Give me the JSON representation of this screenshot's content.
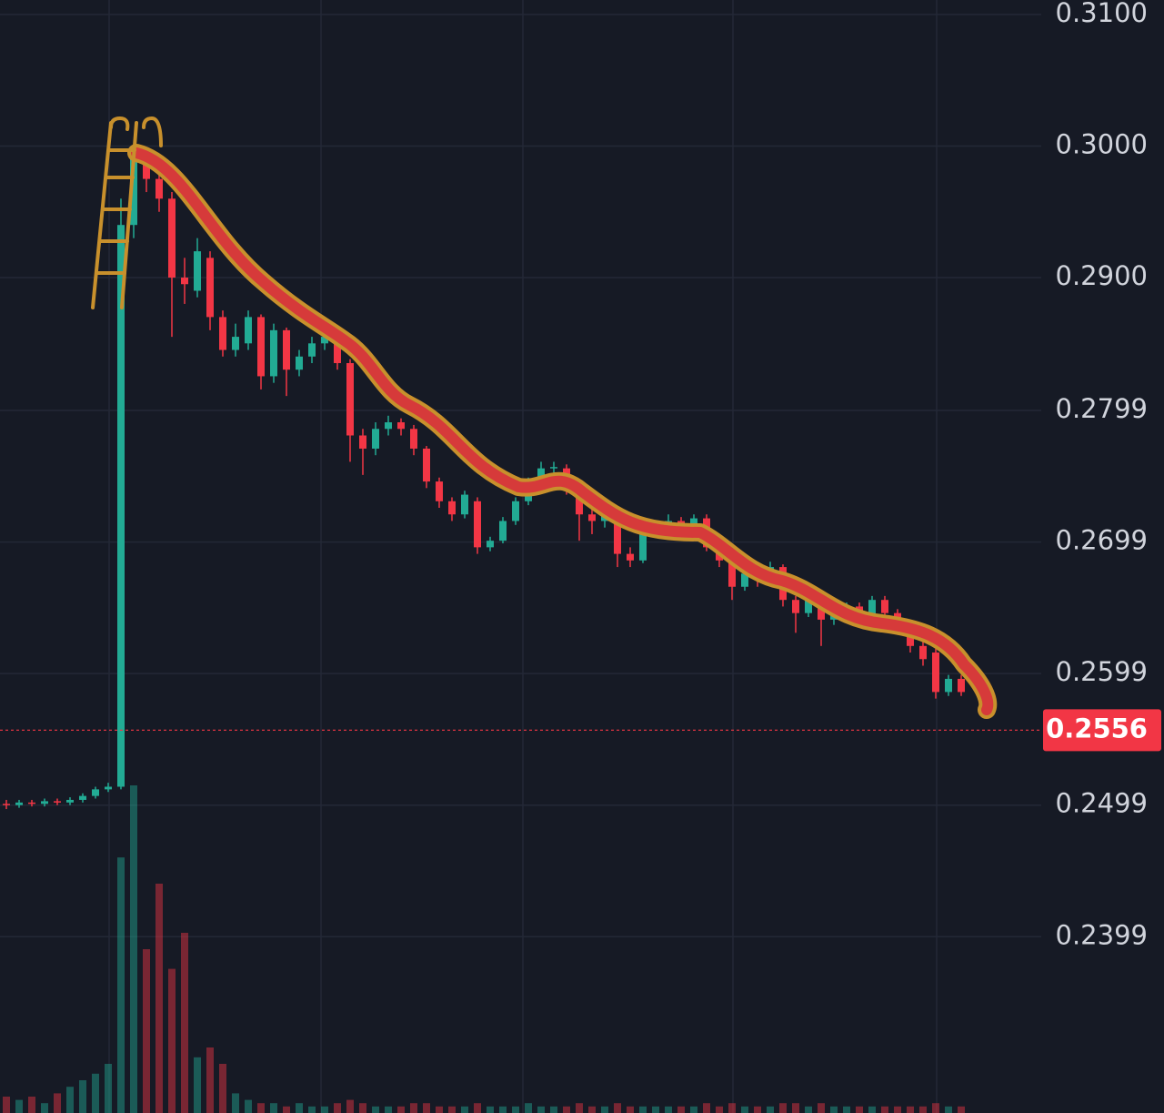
{
  "chart_data": {
    "type": "candlestick",
    "open": [
      0.25,
      0.2499,
      0.2501,
      0.25,
      0.2502,
      0.2501,
      0.2503,
      0.2506,
      0.2511,
      0.2513,
      0.294,
      0.2995,
      0.2975,
      0.296,
      0.29,
      0.289,
      0.2915,
      0.287,
      0.2845,
      0.285,
      0.287,
      0.2825,
      0.286,
      0.283,
      0.284,
      0.285,
      0.2855,
      0.2835,
      0.278,
      0.277,
      0.2785,
      0.279,
      0.2785,
      0.277,
      0.2745,
      0.273,
      0.272,
      0.273,
      0.2695,
      0.27,
      0.2715,
      0.273,
      0.2745,
      0.2755,
      0.2755,
      0.274,
      0.272,
      0.2715,
      0.272,
      0.269,
      0.2685,
      0.2705,
      0.271,
      0.2715,
      0.271,
      0.2717,
      0.2695,
      0.2685,
      0.2665,
      0.2675,
      0.267,
      0.268,
      0.2655,
      0.2645,
      0.2655,
      0.264,
      0.2645,
      0.265,
      0.264,
      0.2655,
      0.2645,
      0.2635,
      0.262,
      0.2615,
      0.2585,
      0.2595
    ],
    "high": [
      0.2503,
      0.2503,
      0.2503,
      0.2504,
      0.2504,
      0.2505,
      0.2508,
      0.2513,
      0.2516,
      0.296,
      0.3,
      0.2998,
      0.298,
      0.2965,
      0.2915,
      0.293,
      0.292,
      0.2875,
      0.2865,
      0.2875,
      0.2872,
      0.2865,
      0.2862,
      0.2845,
      0.2855,
      0.286,
      0.2858,
      0.2838,
      0.2785,
      0.279,
      0.2795,
      0.2793,
      0.2788,
      0.2772,
      0.2748,
      0.2733,
      0.2738,
      0.2733,
      0.2703,
      0.2718,
      0.2733,
      0.2748,
      0.276,
      0.276,
      0.2758,
      0.2742,
      0.2725,
      0.2724,
      0.2722,
      0.2695,
      0.2708,
      0.2715,
      0.272,
      0.2718,
      0.272,
      0.272,
      0.2698,
      0.2688,
      0.2678,
      0.2679,
      0.2684,
      0.2682,
      0.2658,
      0.2658,
      0.2658,
      0.2648,
      0.2653,
      0.2653,
      0.2658,
      0.2658,
      0.2648,
      0.2638,
      0.2623,
      0.2618,
      0.2598,
      0.2598
    ],
    "low": [
      0.2496,
      0.2497,
      0.2498,
      0.2498,
      0.2499,
      0.2499,
      0.2501,
      0.2504,
      0.2509,
      0.2511,
      0.293,
      0.2965,
      0.295,
      0.2855,
      0.288,
      0.2885,
      0.286,
      0.284,
      0.284,
      0.2845,
      0.2815,
      0.282,
      0.281,
      0.2825,
      0.2835,
      0.2845,
      0.283,
      0.276,
      0.275,
      0.2765,
      0.278,
      0.278,
      0.2765,
      0.274,
      0.2725,
      0.2715,
      0.2717,
      0.269,
      0.2692,
      0.2698,
      0.2712,
      0.2727,
      0.2742,
      0.275,
      0.2735,
      0.27,
      0.2705,
      0.271,
      0.268,
      0.268,
      0.2683,
      0.2702,
      0.2707,
      0.2706,
      0.2707,
      0.2692,
      0.268,
      0.2655,
      0.2662,
      0.2665,
      0.2667,
      0.265,
      0.263,
      0.2642,
      0.262,
      0.2636,
      0.2642,
      0.2637,
      0.2637,
      0.2642,
      0.2632,
      0.2615,
      0.2605,
      0.258,
      0.2582,
      0.2582
    ],
    "close": [
      0.2499,
      0.2501,
      0.25,
      0.2502,
      0.2501,
      0.2503,
      0.2506,
      0.2511,
      0.2513,
      0.294,
      0.299,
      0.2975,
      0.296,
      0.29,
      0.2895,
      0.292,
      0.287,
      0.2845,
      0.2855,
      0.287,
      0.2825,
      0.286,
      0.283,
      0.284,
      0.285,
      0.2855,
      0.2835,
      0.278,
      0.277,
      0.2785,
      0.279,
      0.2785,
      0.277,
      0.2745,
      0.273,
      0.272,
      0.2735,
      0.2695,
      0.27,
      0.2715,
      0.273,
      0.2745,
      0.2755,
      0.2756,
      0.274,
      0.272,
      0.2715,
      0.272,
      0.269,
      0.2685,
      0.2705,
      0.2712,
      0.2715,
      0.271,
      0.2717,
      0.2695,
      0.2685,
      0.2665,
      0.2675,
      0.267,
      0.268,
      0.2655,
      0.2645,
      0.2655,
      0.264,
      0.2645,
      0.265,
      0.264,
      0.2655,
      0.2645,
      0.2635,
      0.262,
      0.261,
      0.2585,
      0.2595,
      0.2585
    ],
    "volume": [
      5,
      4,
      5,
      3,
      6,
      8,
      10,
      12,
      15,
      78,
      100,
      50,
      70,
      44,
      55,
      17,
      20,
      15,
      6,
      4,
      3,
      3,
      2,
      3,
      2,
      2,
      3,
      4,
      3,
      2,
      2,
      2,
      3,
      3,
      2,
      2,
      2,
      3,
      2,
      2,
      2,
      3,
      2,
      2,
      2,
      3,
      2,
      2,
      3,
      2,
      2,
      2,
      2,
      2,
      2,
      3,
      2,
      3,
      2,
      2,
      2,
      3,
      3,
      2,
      3,
      2,
      2,
      2,
      2,
      2,
      2,
      2,
      2,
      3,
      2,
      2
    ],
    "up_color": "#22ab94",
    "down_color": "#f23645",
    "last_price": 0.2556,
    "ylim": [
      0.2265,
      0.3111
    ],
    "yticks": [
      {
        "value": 0.31,
        "label": "0.3100"
      },
      {
        "value": 0.3,
        "label": "0.3000"
      },
      {
        "value": 0.29,
        "label": "0.2900"
      },
      0.2799,
      0.2699,
      0.2599,
      0.2499,
      0.2399
    ],
    "grid": true
  }
}
